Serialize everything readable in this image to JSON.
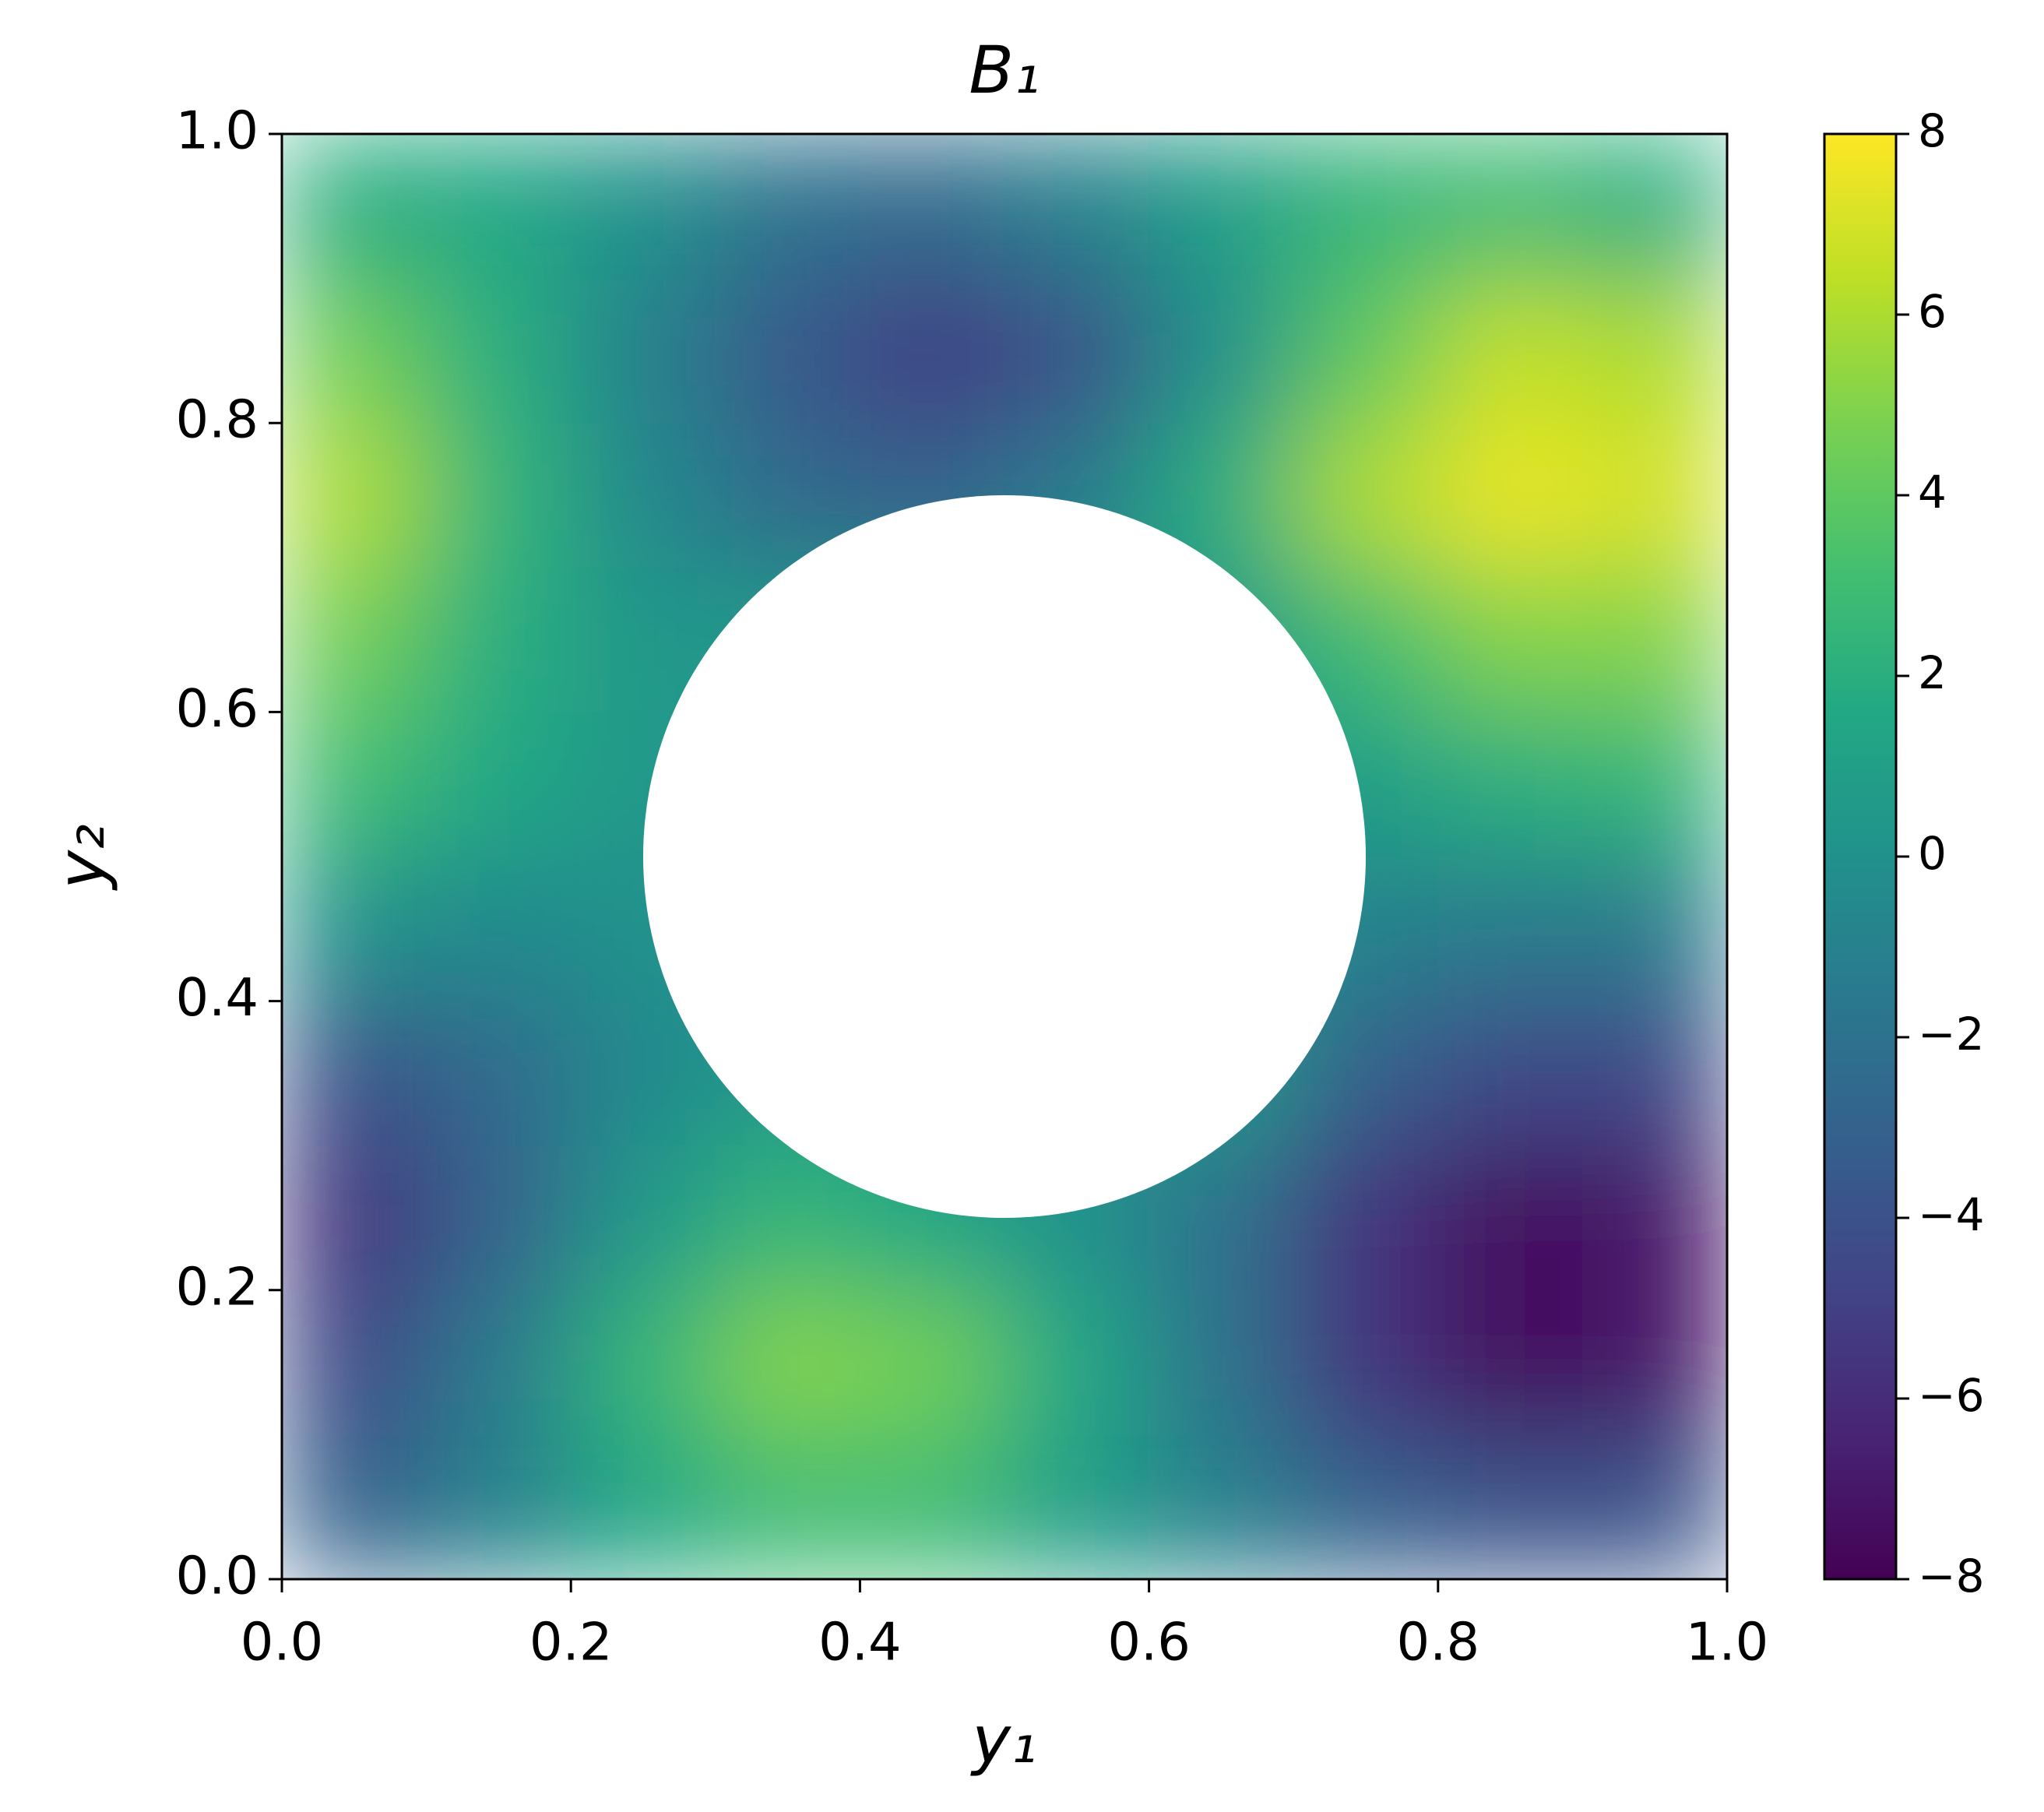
{
  "chart_data": {
    "type": "heatmap",
    "title": "B₁",
    "x_label": "y₁",
    "y_label": "y₂",
    "x": [
      0.05,
      0.15,
      0.25,
      0.35,
      0.45,
      0.55,
      0.65,
      0.75,
      0.85,
      0.95
    ],
    "y": [
      0.05,
      0.15,
      0.25,
      0.35,
      0.45,
      0.55,
      0.65,
      0.75,
      0.85,
      0.95
    ],
    "z": [
      [
        -3,
        -1,
        1.5,
        3,
        3,
        1,
        -1,
        -3,
        -4,
        -4
      ],
      [
        -4.5,
        -1.5,
        2.5,
        5,
        4.5,
        1.5,
        -2,
        -5.5,
        -7.5,
        -7
      ],
      [
        -5.5,
        -3,
        0.5,
        2.5,
        1.5,
        0,
        -2,
        -5.5,
        -7.5,
        -7
      ],
      [
        -4,
        -2.5,
        -0.5,
        null,
        null,
        null,
        null,
        -3,
        -4.5,
        -4.5
      ],
      [
        0,
        -0.5,
        0,
        null,
        null,
        null,
        null,
        -1,
        -1.5,
        -1.5
      ],
      [
        3,
        1.5,
        0.5,
        null,
        null,
        null,
        null,
        1,
        2,
        2.5
      ],
      [
        4.5,
        2,
        0.5,
        null,
        null,
        null,
        null,
        3,
        5,
        5
      ],
      [
        6,
        2.5,
        -0.5,
        -2.5,
        -3,
        -1.5,
        2,
        6,
        7.5,
        7
      ],
      [
        4.5,
        2,
        -1,
        -3.5,
        -5,
        -4,
        0,
        4,
        6.5,
        6
      ],
      [
        2,
        1.5,
        0,
        -2,
        -2.5,
        -1,
        1,
        2.5,
        3,
        2
      ]
    ],
    "colormap": "viridis",
    "clim": [
      -8,
      8
    ],
    "cticks": [
      {
        "value": -8,
        "label": "−8"
      },
      {
        "value": -6,
        "label": "−6"
      },
      {
        "value": -4,
        "label": "−4"
      },
      {
        "value": -2,
        "label": "−2"
      },
      0,
      2,
      4,
      6,
      8
    ],
    "xlim": [
      0,
      1
    ],
    "ylim": [
      0,
      1
    ],
    "xticks": [
      {
        "value": 0,
        "label": "0.0"
      },
      0.2,
      0.4,
      0.6,
      0.8,
      {
        "value": 1,
        "label": "1.0"
      }
    ],
    "yticks": [
      {
        "value": 0,
        "label": "0.0"
      },
      0.2,
      0.4,
      0.6,
      0.8,
      {
        "value": 1,
        "label": "1.0"
      }
    ]
  }
}
